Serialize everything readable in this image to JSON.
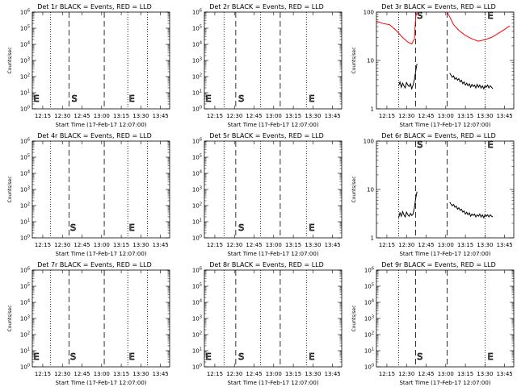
{
  "figure": {
    "background": "#ffffff",
    "axis_color": "#000000",
    "event_color": "#000000",
    "lld_color": "#ff0000"
  },
  "chart_data": [
    {
      "type": "line",
      "title": "Det 1r BLACK = Events, RED = LLD",
      "xlabel": "Start Time (17-Feb-17 12:07:00)",
      "ylabel": "Counts/sec",
      "y_scale": "log",
      "ylim": [
        1,
        1000000
      ],
      "ytick_labels": [
        "10^0",
        "10^1",
        "10^2",
        "10^3",
        "10^4",
        "10^5",
        "10^6"
      ],
      "xlim": [
        "12:07",
        "13:52"
      ],
      "xtick_labels": [
        "12:15",
        "12:30",
        "12:45",
        "13:00",
        "13:15",
        "13:30",
        "13:45"
      ],
      "markers": {
        "dotted": [
          "12:21",
          "13:20",
          "13:35"
        ],
        "dashed": [
          "12:35",
          "13:02"
        ]
      },
      "letters": [
        {
          "text": "E",
          "x": "12:08"
        },
        {
          "text": "S",
          "x": "12:37"
        },
        {
          "text": "E",
          "x": "13:21"
        }
      ],
      "series": []
    },
    {
      "type": "line",
      "title": "Det 2r BLACK = Events, RED = LLD",
      "xlabel": "Start Time (17-Feb-17 12:07:00)",
      "ylabel": "",
      "y_scale": "log",
      "ylim": [
        1,
        1000000
      ],
      "ytick_labels": [
        "10^0",
        "10^1",
        "10^2",
        "10^3",
        "10^4",
        "10^5",
        "10^6"
      ],
      "xlim": [
        "12:07",
        "13:52"
      ],
      "xtick_labels": [
        "12:15",
        "12:30",
        "12:45",
        "13:00",
        "13:15",
        "13:30",
        "13:45"
      ],
      "markers": {
        "dotted": [
          "12:22",
          "12:50",
          "13:25"
        ],
        "dashed": [
          "12:31",
          "13:05"
        ]
      },
      "letters": [
        {
          "text": "E",
          "x": "12:08"
        },
        {
          "text": "S",
          "x": "12:33"
        },
        {
          "text": "E",
          "x": "13:27"
        }
      ],
      "series": []
    },
    {
      "type": "line",
      "title": "Det 3r BLACK = Events, RED = LLD",
      "xlabel": "Start Time (17-Feb-17 12:07:00)",
      "ylabel": "Counts/sec",
      "y_scale": "log",
      "ylim": [
        1,
        100
      ],
      "ytick_labels": [
        "1",
        "10",
        "100"
      ],
      "xlim": [
        "12:07",
        "13:52"
      ],
      "xtick_labels": [
        "12:15",
        "12:30",
        "12:45",
        "13:00",
        "13:15",
        "13:30",
        "13:45"
      ],
      "markers": {
        "dotted": [
          "12:24",
          "13:30"
        ],
        "dashed": [
          "12:37",
          "13:01"
        ]
      },
      "letters": [
        {
          "text": "S",
          "x": "12:38"
        },
        {
          "text": "E",
          "x": "13:32"
        }
      ],
      "series": [
        {
          "role": "lld",
          "color": "#ff0000",
          "points": [
            [
              "12:07",
              65
            ],
            [
              "12:12",
              58
            ],
            [
              "12:17",
              55
            ],
            [
              "12:22",
              42
            ],
            [
              "12:27",
              30
            ],
            [
              "12:31",
              24
            ],
            [
              "12:34",
              22
            ],
            [
              "12:36",
              28
            ],
            [
              "12:37",
              80
            ],
            [
              "12:38",
              100
            ],
            null,
            [
              "13:01",
              100
            ],
            [
              "13:03",
              80
            ],
            [
              "13:06",
              55
            ],
            [
              "13:10",
              42
            ],
            [
              "13:15",
              33
            ],
            [
              "13:20",
              28
            ],
            [
              "13:25",
              25
            ],
            [
              "13:30",
              27
            ],
            [
              "13:35",
              30
            ],
            [
              "13:40",
              36
            ],
            [
              "13:45",
              44
            ],
            [
              "13:49",
              52
            ]
          ]
        },
        {
          "role": "events",
          "color": "#000000",
          "points": [
            [
              "12:24",
              3.0
            ],
            [
              "12:25",
              3.6
            ],
            [
              "12:26",
              2.8
            ],
            [
              "12:27",
              3.4
            ],
            [
              "12:28",
              3.0
            ],
            [
              "12:29",
              2.7
            ],
            [
              "12:30",
              3.5
            ],
            [
              "12:31",
              3.1
            ],
            [
              "12:32",
              2.9
            ],
            [
              "12:33",
              3.3
            ],
            [
              "12:34",
              2.6
            ],
            [
              "12:35",
              3.1
            ],
            [
              "12:36",
              4.0
            ],
            [
              "12:37",
              6.0
            ],
            [
              "12:38",
              8.5
            ],
            null,
            [
              "13:03",
              5.5
            ],
            [
              "13:04",
              5.0
            ],
            [
              "13:05",
              4.5
            ],
            [
              "13:06",
              4.8
            ],
            [
              "13:07",
              4.1
            ],
            [
              "13:08",
              4.4
            ],
            [
              "13:09",
              3.9
            ],
            [
              "13:10",
              4.2
            ],
            [
              "13:11",
              3.6
            ],
            [
              "13:12",
              3.9
            ],
            [
              "13:13",
              3.3
            ],
            [
              "13:14",
              3.6
            ],
            [
              "13:15",
              3.1
            ],
            [
              "13:16",
              3.4
            ],
            [
              "13:17",
              3.0
            ],
            [
              "13:18",
              3.3
            ],
            [
              "13:19",
              2.8
            ],
            [
              "13:20",
              3.2
            ],
            [
              "13:21",
              2.9
            ],
            [
              "13:22",
              3.1
            ],
            [
              "13:23",
              2.7
            ],
            [
              "13:24",
              3.2
            ],
            [
              "13:25",
              2.8
            ],
            [
              "13:26",
              3.1
            ],
            [
              "13:27",
              2.7
            ],
            [
              "13:28",
              3.0
            ],
            [
              "13:29",
              2.6
            ],
            [
              "13:30",
              3.0
            ],
            [
              "13:31",
              2.8
            ],
            [
              "13:32",
              3.1
            ],
            [
              "13:33",
              2.7
            ],
            [
              "13:34",
              3.0
            ],
            [
              "13:35",
              2.8
            ],
            [
              "13:36",
              2.6
            ]
          ]
        }
      ]
    },
    {
      "type": "line",
      "title": "Det 4r BLACK = Events, RED = LLD",
      "xlabel": "Start Time (17-Feb-17 12:07:00)",
      "ylabel": "Counts/sec",
      "y_scale": "log",
      "ylim": [
        1,
        1000000
      ],
      "ytick_labels": [
        "10^0",
        "10^1",
        "10^2",
        "10^3",
        "10^4",
        "10^5",
        "10^6"
      ],
      "xlim": [
        "12:07",
        "13:52"
      ],
      "xtick_labels": [
        "12:15",
        "12:30",
        "12:45",
        "13:00",
        "13:15",
        "13:30",
        "13:45"
      ],
      "markers": {
        "dotted": [
          "12:21",
          "13:20",
          "13:35"
        ],
        "dashed": [
          "12:35",
          "13:02"
        ]
      },
      "letters": [
        {
          "text": "S",
          "x": "12:36"
        },
        {
          "text": "E",
          "x": "13:21"
        }
      ],
      "series": []
    },
    {
      "type": "line",
      "title": "Det 5r BLACK = Events, RED = LLD",
      "xlabel": "Start Time (17-Feb-17 12:07:00)",
      "ylabel": "",
      "y_scale": "log",
      "ylim": [
        1,
        1000000
      ],
      "ytick_labels": [
        "10^0",
        "10^1",
        "10^2",
        "10^3",
        "10^4",
        "10^5",
        "10^6"
      ],
      "xlim": [
        "12:07",
        "13:52"
      ],
      "xtick_labels": [
        "12:15",
        "12:30",
        "12:45",
        "13:00",
        "13:15",
        "13:30",
        "13:45"
      ],
      "markers": {
        "dotted": [
          "12:22",
          "12:50",
          "13:25"
        ],
        "dashed": [
          "12:31",
          "13:05"
        ]
      },
      "letters": [
        {
          "text": "S",
          "x": "12:33"
        },
        {
          "text": "E",
          "x": "13:27"
        }
      ],
      "series": []
    },
    {
      "type": "line",
      "title": "Det 6r BLACK = Events, RED = LLD",
      "xlabel": "Start Time (17-Feb-17 12:07:00)",
      "ylabel": "Counts/sec",
      "y_scale": "log",
      "ylim": [
        1,
        100
      ],
      "ytick_labels": [
        "1",
        "10",
        "100"
      ],
      "xlim": [
        "12:07",
        "13:52"
      ],
      "xtick_labels": [
        "12:15",
        "12:30",
        "12:45",
        "13:00",
        "13:15",
        "13:30",
        "13:45"
      ],
      "markers": {
        "dotted": [
          "12:24",
          "13:30"
        ],
        "dashed": [
          "12:37",
          "13:01"
        ]
      },
      "letters": [
        {
          "text": "S",
          "x": "12:38"
        },
        {
          "text": "E",
          "x": "13:32"
        }
      ],
      "series": [
        {
          "role": "events",
          "color": "#000000",
          "points": [
            [
              "12:24",
              2.6
            ],
            [
              "12:25",
              3.3
            ],
            [
              "12:26",
              2.8
            ],
            [
              "12:27",
              3.5
            ],
            [
              "12:28",
              3.0
            ],
            [
              "12:29",
              2.7
            ],
            [
              "12:30",
              3.4
            ],
            [
              "12:31",
              3.0
            ],
            [
              "12:32",
              2.8
            ],
            [
              "12:33",
              3.2
            ],
            [
              "12:34",
              2.9
            ],
            [
              "12:35",
              3.1
            ],
            [
              "12:36",
              4.2
            ],
            [
              "12:37",
              6.5
            ],
            [
              "12:38",
              9.0
            ],
            null,
            [
              "13:03",
              5.5
            ],
            [
              "13:04",
              5.0
            ],
            [
              "13:05",
              4.6
            ],
            [
              "13:06",
              4.9
            ],
            [
              "13:07",
              4.3
            ],
            [
              "13:08",
              4.5
            ],
            [
              "13:09",
              3.9
            ],
            [
              "13:10",
              4.2
            ],
            [
              "13:11",
              3.7
            ],
            [
              "13:12",
              3.9
            ],
            [
              "13:13",
              3.4
            ],
            [
              "13:14",
              3.6
            ],
            [
              "13:15",
              3.1
            ],
            [
              "13:16",
              3.4
            ],
            [
              "13:17",
              3.0
            ],
            [
              "13:18",
              3.3
            ],
            [
              "13:19",
              2.8
            ],
            [
              "13:20",
              3.1
            ],
            [
              "13:21",
              2.9
            ],
            [
              "13:22",
              3.1
            ],
            [
              "13:23",
              2.7
            ],
            [
              "13:24",
              3.0
            ],
            [
              "13:25",
              2.8
            ],
            [
              "13:26",
              3.1
            ],
            [
              "13:27",
              2.7
            ],
            [
              "13:28",
              3.0
            ],
            [
              "13:29",
              2.6
            ],
            [
              "13:30",
              3.0
            ],
            [
              "13:31",
              2.8
            ],
            [
              "13:32",
              3.0
            ],
            [
              "13:33",
              2.7
            ],
            [
              "13:34",
              3.0
            ],
            [
              "13:35",
              2.8
            ],
            [
              "13:36",
              2.7
            ]
          ]
        }
      ]
    },
    {
      "type": "line",
      "title": "Det 7r BLACK = Events, RED = LLD",
      "xlabel": "Start Time (17-Feb-17 12:07:00)",
      "ylabel": "Counts/sec",
      "y_scale": "log",
      "ylim": [
        1,
        1000000
      ],
      "ytick_labels": [
        "10^0",
        "10^1",
        "10^2",
        "10^3",
        "10^4",
        "10^5",
        "10^6"
      ],
      "xlim": [
        "12:07",
        "13:52"
      ],
      "xtick_labels": [
        "12:15",
        "12:30",
        "12:45",
        "13:00",
        "13:15",
        "13:30",
        "13:45"
      ],
      "markers": {
        "dotted": [
          "12:21",
          "13:20",
          "13:35"
        ],
        "dashed": [
          "12:35",
          "13:02"
        ]
      },
      "letters": [
        {
          "text": "E",
          "x": "12:08"
        },
        {
          "text": "S",
          "x": "12:36"
        },
        {
          "text": "E",
          "x": "13:21"
        }
      ],
      "series": []
    },
    {
      "type": "line",
      "title": "Det 8r BLACK = Events, RED = LLD",
      "xlabel": "Start Time (17-Feb-17 12:07:00)",
      "ylabel": "",
      "y_scale": "log",
      "ylim": [
        1,
        1000000
      ],
      "ytick_labels": [
        "10^0",
        "10^1",
        "10^2",
        "10^3",
        "10^4",
        "10^5",
        "10^6"
      ],
      "xlim": [
        "12:07",
        "13:52"
      ],
      "xtick_labels": [
        "12:15",
        "12:30",
        "12:45",
        "13:00",
        "13:15",
        "13:30",
        "13:45"
      ],
      "markers": {
        "dotted": [
          "12:22",
          "12:50",
          "13:25"
        ],
        "dashed": [
          "12:31",
          "13:05"
        ]
      },
      "letters": [
        {
          "text": "E",
          "x": "12:08"
        },
        {
          "text": "S",
          "x": "12:33"
        },
        {
          "text": "E",
          "x": "13:27"
        }
      ],
      "series": []
    },
    {
      "type": "line",
      "title": "Det 9r BLACK = Events, RED = LLD",
      "xlabel": "Start Time (17-Feb-17 12:07:00)",
      "ylabel": "Counts/sec",
      "y_scale": "log",
      "ylim": [
        1,
        1000000
      ],
      "ytick_labels": [
        "10^0",
        "10^1",
        "10^2",
        "10^3",
        "10^4",
        "10^5",
        "10^6"
      ],
      "xlim": [
        "12:07",
        "13:52"
      ],
      "xtick_labels": [
        "12:15",
        "12:30",
        "12:45",
        "13:00",
        "13:15",
        "13:30",
        "13:45"
      ],
      "markers": {
        "dotted": [
          "12:24",
          "13:30"
        ],
        "dashed": [
          "12:37",
          "13:01"
        ]
      },
      "letters": [
        {
          "text": "S",
          "x": "12:38"
        },
        {
          "text": "E",
          "x": "13:32"
        }
      ],
      "series": []
    }
  ]
}
